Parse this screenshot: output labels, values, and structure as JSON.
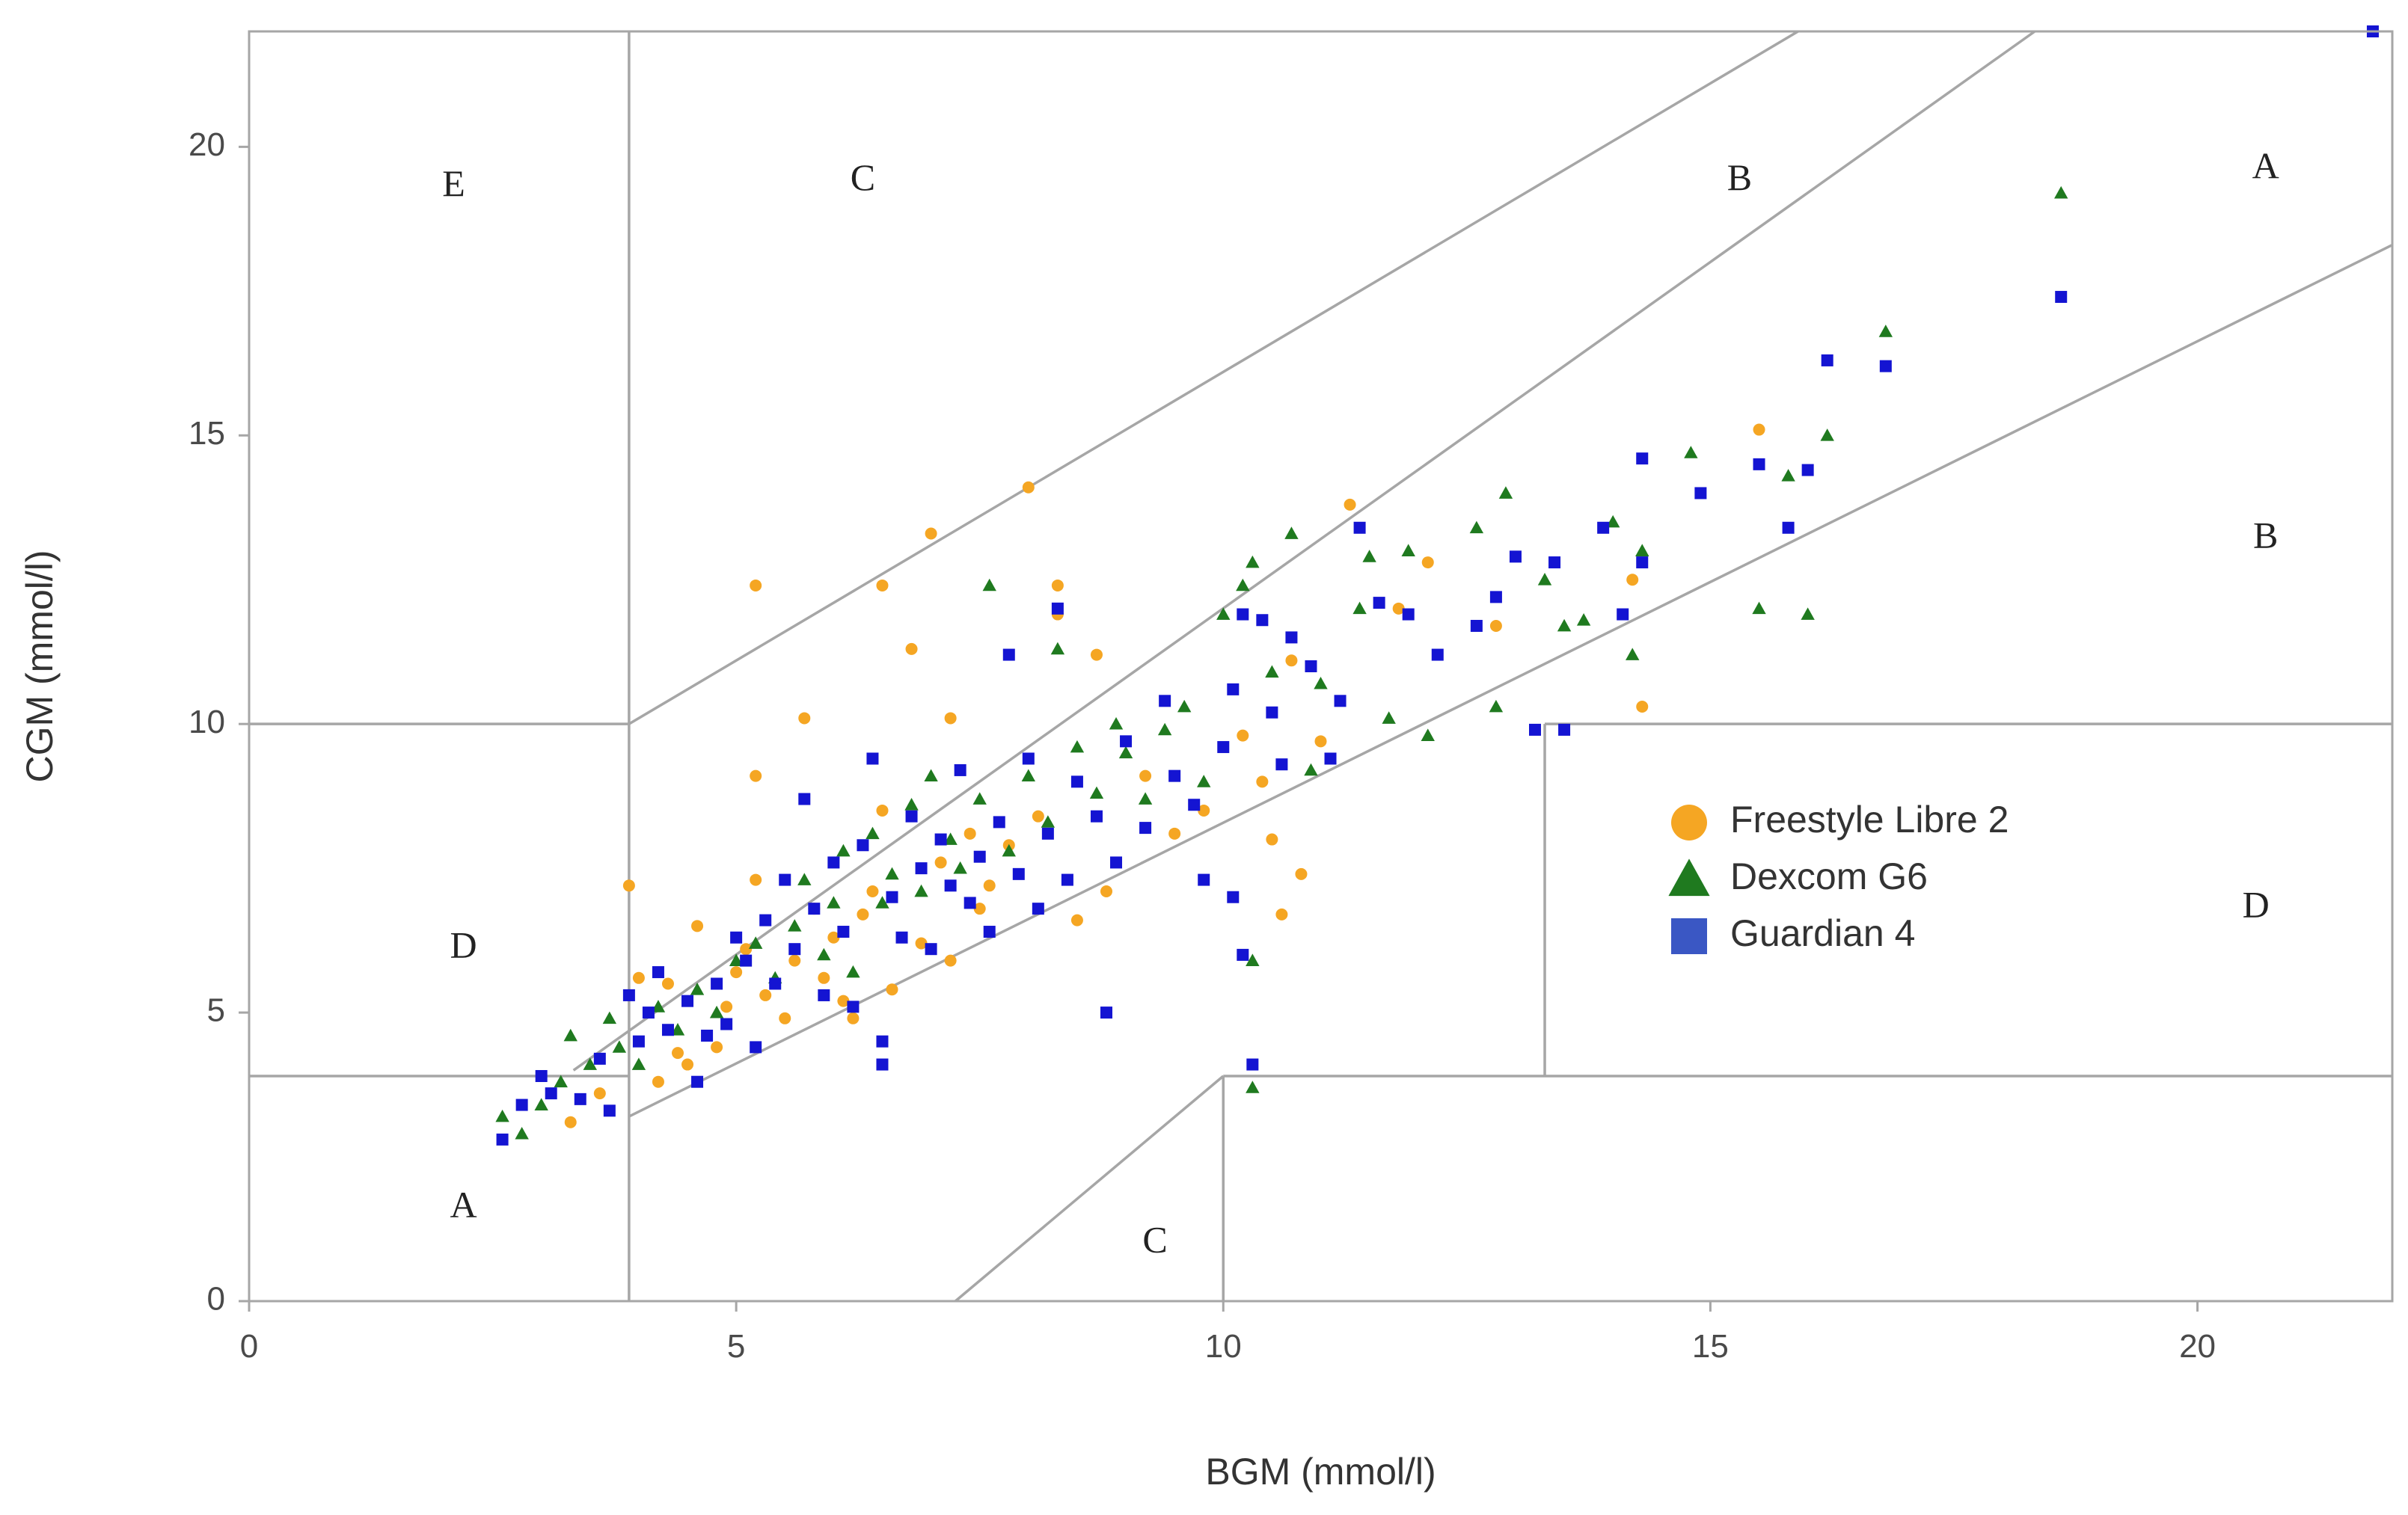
{
  "chart_data": {
    "type": "scatter",
    "title": "",
    "xlabel": "BGM (mmol/l)",
    "ylabel": "CGM (mmol/l)",
    "xlim": [
      0,
      22
    ],
    "ylim": [
      0,
      22
    ],
    "x_ticks": [
      0,
      5,
      10,
      15,
      20
    ],
    "y_ticks": [
      0,
      5,
      10,
      15,
      20
    ],
    "grid": false,
    "legend_position": "center-right",
    "colors": {
      "Freestyle Libre 2": "#F5A623",
      "Dexcom G6": "#1F7A1F",
      "Guardian 4": "#1414D2",
      "zone_lines": "#A6A6A6",
      "legend_square": "#3A57C4"
    },
    "zone_labels": [
      {
        "text": "E",
        "x": 2.1,
        "y": 19.3
      },
      {
        "text": "C",
        "x": 6.3,
        "y": 19.4
      },
      {
        "text": "B",
        "x": 15.3,
        "y": 19.4
      },
      {
        "text": "A",
        "x": 20.7,
        "y": 19.6
      },
      {
        "text": "B",
        "x": 20.7,
        "y": 13.2
      },
      {
        "text": "D",
        "x": 2.2,
        "y": 6.1
      },
      {
        "text": "D",
        "x": 20.6,
        "y": 6.8
      },
      {
        "text": "A",
        "x": 2.2,
        "y": 1.6
      },
      {
        "text": "C",
        "x": 9.3,
        "y": 1.0
      }
    ],
    "zone_boundaries": [
      {
        "name": "zone-boundary-e-vertical",
        "points": [
          [
            3.9,
            22
          ],
          [
            3.9,
            0
          ]
        ]
      },
      {
        "name": "zone-boundary-ed-horizontal",
        "points": [
          [
            0,
            10
          ],
          [
            3.9,
            10
          ]
        ]
      },
      {
        "name": "zone-boundary-da-horizontal-left",
        "points": [
          [
            0,
            3.9
          ],
          [
            3.9,
            3.9
          ]
        ]
      },
      {
        "name": "zone-boundary-c-upper",
        "points": [
          [
            3.9,
            10
          ],
          [
            15.9,
            22
          ]
        ]
      },
      {
        "name": "zone-boundary-ab-upper",
        "points": [
          [
            3.33,
            4.0
          ],
          [
            18.33,
            22
          ]
        ]
      },
      {
        "name": "zone-boundary-ab-lower",
        "points": [
          [
            3.9,
            3.2
          ],
          [
            22,
            18.3
          ]
        ]
      },
      {
        "name": "zone-boundary-c-lower",
        "points": [
          [
            7.25,
            0
          ],
          [
            10,
            3.9
          ]
        ]
      },
      {
        "name": "zone-boundary-d-lower-vertical",
        "points": [
          [
            10,
            3.9
          ],
          [
            10,
            0
          ]
        ]
      },
      {
        "name": "zone-boundary-d-lower-horizontal",
        "points": [
          [
            10,
            3.9
          ],
          [
            22,
            3.9
          ]
        ]
      },
      {
        "name": "zone-boundary-d-right-vertical",
        "points": [
          [
            13.3,
            3.9
          ],
          [
            13.3,
            10
          ]
        ]
      },
      {
        "name": "zone-boundary-d-right-horizontal",
        "points": [
          [
            13.3,
            10
          ],
          [
            22,
            10
          ]
        ]
      }
    ],
    "series": [
      {
        "name": "Freestyle Libre 2",
        "marker": "circle",
        "points": [
          [
            3.3,
            3.1
          ],
          [
            3.6,
            3.6
          ],
          [
            3.9,
            7.2
          ],
          [
            4.0,
            5.6
          ],
          [
            4.2,
            3.8
          ],
          [
            4.3,
            5.5
          ],
          [
            4.4,
            4.3
          ],
          [
            4.5,
            4.1
          ],
          [
            4.6,
            6.5
          ],
          [
            4.8,
            4.4
          ],
          [
            4.9,
            5.1
          ],
          [
            5.0,
            5.7
          ],
          [
            5.1,
            6.1
          ],
          [
            5.2,
            12.4
          ],
          [
            5.2,
            9.1
          ],
          [
            5.2,
            7.3
          ],
          [
            5.3,
            5.3
          ],
          [
            5.5,
            4.9
          ],
          [
            5.6,
            5.9
          ],
          [
            5.7,
            10.1
          ],
          [
            5.8,
            6.8
          ],
          [
            5.9,
            5.6
          ],
          [
            6.0,
            6.3
          ],
          [
            6.1,
            5.2
          ],
          [
            6.2,
            4.9
          ],
          [
            6.3,
            6.7
          ],
          [
            6.4,
            7.1
          ],
          [
            6.5,
            12.4
          ],
          [
            6.5,
            8.5
          ],
          [
            6.6,
            5.4
          ],
          [
            6.8,
            11.3
          ],
          [
            6.9,
            6.2
          ],
          [
            7.0,
            13.3
          ],
          [
            7.1,
            7.6
          ],
          [
            7.2,
            10.1
          ],
          [
            7.2,
            5.9
          ],
          [
            7.4,
            8.1
          ],
          [
            7.5,
            6.8
          ],
          [
            7.6,
            7.2
          ],
          [
            7.8,
            7.9
          ],
          [
            8.0,
            14.1
          ],
          [
            8.1,
            8.4
          ],
          [
            8.3,
            12.4
          ],
          [
            8.3,
            11.9
          ],
          [
            8.5,
            6.6
          ],
          [
            8.7,
            11.2
          ],
          [
            8.8,
            7.1
          ],
          [
            9.2,
            9.1
          ],
          [
            9.5,
            8.1
          ],
          [
            9.8,
            8.5
          ],
          [
            10.2,
            9.8
          ],
          [
            10.4,
            9.0
          ],
          [
            10.5,
            8.0
          ],
          [
            10.6,
            6.7
          ],
          [
            10.7,
            11.1
          ],
          [
            10.8,
            7.4
          ],
          [
            11.0,
            9.7
          ],
          [
            11.3,
            13.8
          ],
          [
            11.8,
            12.0
          ],
          [
            12.1,
            12.8
          ],
          [
            12.8,
            11.7
          ],
          [
            14.2,
            12.5
          ],
          [
            14.3,
            10.3
          ],
          [
            15.5,
            15.1
          ]
        ]
      },
      {
        "name": "Dexcom G6",
        "marker": "triangle",
        "points": [
          [
            2.6,
            3.2
          ],
          [
            2.8,
            2.9
          ],
          [
            3.0,
            3.4
          ],
          [
            3.2,
            3.8
          ],
          [
            3.3,
            4.6
          ],
          [
            3.5,
            4.1
          ],
          [
            3.7,
            4.9
          ],
          [
            3.8,
            4.4
          ],
          [
            4.0,
            4.1
          ],
          [
            4.2,
            5.1
          ],
          [
            4.4,
            4.7
          ],
          [
            4.6,
            5.4
          ],
          [
            4.8,
            5.0
          ],
          [
            5.0,
            5.9
          ],
          [
            5.2,
            6.2
          ],
          [
            5.4,
            5.6
          ],
          [
            5.6,
            6.5
          ],
          [
            5.7,
            7.3
          ],
          [
            5.9,
            6.0
          ],
          [
            6.0,
            6.9
          ],
          [
            6.1,
            7.8
          ],
          [
            6.2,
            5.7
          ],
          [
            6.4,
            8.1
          ],
          [
            6.5,
            6.9
          ],
          [
            6.6,
            7.4
          ],
          [
            6.8,
            8.6
          ],
          [
            6.9,
            7.1
          ],
          [
            7.0,
            9.1
          ],
          [
            7.2,
            8.0
          ],
          [
            7.3,
            7.5
          ],
          [
            7.5,
            8.7
          ],
          [
            7.6,
            12.4
          ],
          [
            7.8,
            7.8
          ],
          [
            8.0,
            9.1
          ],
          [
            8.2,
            8.3
          ],
          [
            8.3,
            11.3
          ],
          [
            8.5,
            9.6
          ],
          [
            8.7,
            8.8
          ],
          [
            8.9,
            10.0
          ],
          [
            9.0,
            9.5
          ],
          [
            9.2,
            8.7
          ],
          [
            9.4,
            9.9
          ],
          [
            9.6,
            10.3
          ],
          [
            9.8,
            9.0
          ],
          [
            10.0,
            11.9
          ],
          [
            10.2,
            12.4
          ],
          [
            10.3,
            12.8
          ],
          [
            10.3,
            5.9
          ],
          [
            10.3,
            3.7
          ],
          [
            10.5,
            10.9
          ],
          [
            10.7,
            13.3
          ],
          [
            10.9,
            9.2
          ],
          [
            11.0,
            10.7
          ],
          [
            11.4,
            12.0
          ],
          [
            11.5,
            12.9
          ],
          [
            11.7,
            10.1
          ],
          [
            11.9,
            13.0
          ],
          [
            12.1,
            9.8
          ],
          [
            12.6,
            13.4
          ],
          [
            12.8,
            10.3
          ],
          [
            12.9,
            14.0
          ],
          [
            13.3,
            12.5
          ],
          [
            13.5,
            11.7
          ],
          [
            13.7,
            11.8
          ],
          [
            14.0,
            13.5
          ],
          [
            14.2,
            11.2
          ],
          [
            14.3,
            13.0
          ],
          [
            14.8,
            14.7
          ],
          [
            15.5,
            12.0
          ],
          [
            15.8,
            14.3
          ],
          [
            16.0,
            11.9
          ],
          [
            16.2,
            15.0
          ],
          [
            16.8,
            16.8
          ],
          [
            18.6,
            19.2
          ]
        ]
      },
      {
        "name": "Guardian 4",
        "marker": "square",
        "points": [
          [
            2.6,
            2.8
          ],
          [
            2.8,
            3.4
          ],
          [
            3.0,
            3.9
          ],
          [
            3.1,
            3.6
          ],
          [
            3.4,
            3.5
          ],
          [
            3.6,
            4.2
          ],
          [
            3.7,
            3.3
          ],
          [
            3.9,
            5.3
          ],
          [
            4.0,
            4.5
          ],
          [
            4.1,
            5.0
          ],
          [
            4.2,
            5.7
          ],
          [
            4.3,
            4.7
          ],
          [
            4.5,
            5.2
          ],
          [
            4.6,
            3.8
          ],
          [
            4.7,
            4.6
          ],
          [
            4.8,
            5.5
          ],
          [
            4.9,
            4.8
          ],
          [
            5.0,
            6.3
          ],
          [
            5.1,
            5.9
          ],
          [
            5.2,
            4.4
          ],
          [
            5.3,
            6.6
          ],
          [
            5.4,
            5.5
          ],
          [
            5.5,
            7.3
          ],
          [
            5.6,
            6.1
          ],
          [
            5.7,
            8.7
          ],
          [
            5.8,
            6.8
          ],
          [
            5.9,
            5.3
          ],
          [
            6.0,
            7.6
          ],
          [
            6.1,
            6.4
          ],
          [
            6.2,
            5.1
          ],
          [
            6.3,
            7.9
          ],
          [
            6.4,
            9.4
          ],
          [
            6.5,
            4.5
          ],
          [
            6.5,
            4.1
          ],
          [
            6.6,
            7.0
          ],
          [
            6.7,
            6.3
          ],
          [
            6.8,
            8.4
          ],
          [
            6.9,
            7.5
          ],
          [
            7.0,
            6.1
          ],
          [
            7.1,
            8.0
          ],
          [
            7.2,
            7.2
          ],
          [
            7.3,
            9.2
          ],
          [
            7.4,
            6.9
          ],
          [
            7.5,
            7.7
          ],
          [
            7.6,
            6.4
          ],
          [
            7.7,
            8.3
          ],
          [
            7.8,
            11.2
          ],
          [
            7.9,
            7.4
          ],
          [
            8.0,
            9.4
          ],
          [
            8.1,
            6.8
          ],
          [
            8.2,
            8.1
          ],
          [
            8.3,
            12.0
          ],
          [
            8.4,
            7.3
          ],
          [
            8.5,
            9.0
          ],
          [
            8.7,
            8.4
          ],
          [
            8.8,
            5.0
          ],
          [
            8.9,
            7.6
          ],
          [
            9.0,
            9.7
          ],
          [
            9.2,
            8.2
          ],
          [
            9.4,
            10.4
          ],
          [
            9.5,
            9.1
          ],
          [
            9.7,
            8.6
          ],
          [
            9.8,
            7.3
          ],
          [
            10.0,
            9.6
          ],
          [
            10.1,
            10.6
          ],
          [
            10.1,
            7.0
          ],
          [
            10.2,
            11.9
          ],
          [
            10.2,
            6.0
          ],
          [
            10.3,
            4.1
          ],
          [
            10.4,
            11.8
          ],
          [
            10.5,
            10.2
          ],
          [
            10.6,
            9.3
          ],
          [
            10.7,
            11.5
          ],
          [
            10.9,
            11.0
          ],
          [
            11.1,
            9.4
          ],
          [
            11.2,
            10.4
          ],
          [
            11.4,
            13.4
          ],
          [
            11.6,
            12.1
          ],
          [
            11.9,
            11.9
          ],
          [
            12.2,
            11.2
          ],
          [
            12.6,
            11.7
          ],
          [
            12.8,
            12.2
          ],
          [
            13.0,
            12.9
          ],
          [
            13.2,
            9.9
          ],
          [
            13.4,
            12.8
          ],
          [
            13.5,
            9.9
          ],
          [
            13.9,
            13.4
          ],
          [
            14.1,
            11.9
          ],
          [
            14.3,
            14.6
          ],
          [
            14.3,
            12.8
          ],
          [
            14.9,
            14.0
          ],
          [
            15.5,
            14.5
          ],
          [
            15.8,
            13.4
          ],
          [
            16.0,
            14.4
          ],
          [
            16.2,
            16.3
          ],
          [
            16.8,
            16.2
          ],
          [
            18.6,
            17.4
          ],
          [
            21.8,
            22.0
          ]
        ]
      }
    ]
  }
}
